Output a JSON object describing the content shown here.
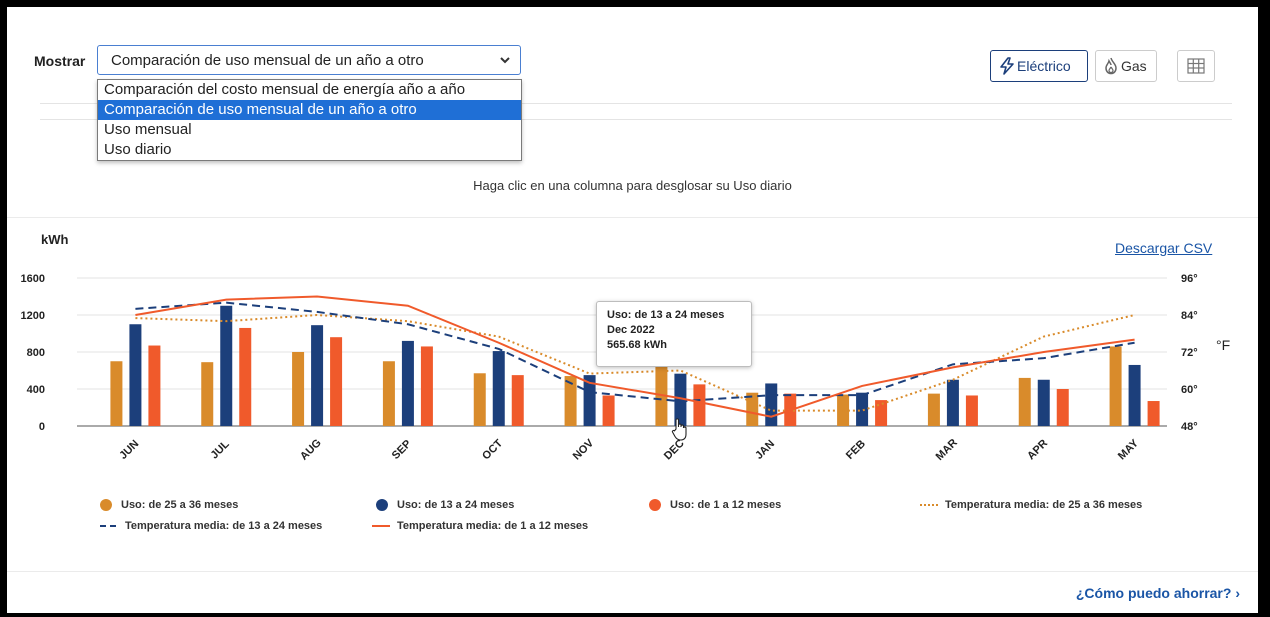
{
  "controls": {
    "mostrar_label": "Mostrar",
    "selected": "Comparación de uso mensual de un año a otro",
    "options": [
      "Comparación del costo mensual de energía año a año",
      "Comparación de uso mensual de un año a otro",
      "Uso mensual",
      "Uso diario"
    ],
    "selected_index": 1,
    "electric_label": "Eléctrico",
    "gas_label": "Gas"
  },
  "hint": "Haga clic en una columna para desglosar su Uso diario",
  "download_csv": "Descargar CSV",
  "chart_data": {
    "type": "bar",
    "ylabel": "kWh",
    "y2label": "°F",
    "ylim": [
      0,
      1600
    ],
    "y_ticks": [
      "1600",
      "1200",
      "800",
      "400",
      "0"
    ],
    "y2lim": [
      48,
      96
    ],
    "y2_ticks": [
      "96°",
      "84°",
      "72°",
      "60°",
      "48°"
    ],
    "categories": [
      "JUN",
      "JUL",
      "AUG",
      "SEP",
      "OCT",
      "NOV",
      "DEC",
      "JAN",
      "FEB",
      "MAR",
      "APR",
      "MAY"
    ],
    "series": [
      {
        "name": "Uso: de 25 a 36 meses",
        "color": "#d98b2b",
        "values": [
          700,
          690,
          800,
          700,
          570,
          540,
          650,
          360,
          340,
          350,
          520,
          860
        ]
      },
      {
        "name": "Uso: de 13 a 24 meses",
        "color": "#1c3f7b",
        "values": [
          1100,
          1300,
          1090,
          920,
          810,
          550,
          565.68,
          460,
          360,
          500,
          500,
          660
        ]
      },
      {
        "name": "Uso: de 1 a 12 meses",
        "color": "#f05a2b",
        "values": [
          870,
          1060,
          960,
          860,
          550,
          330,
          450,
          350,
          280,
          330,
          400,
          270
        ]
      }
    ],
    "lines": [
      {
        "name": "Temperatura media: de 25 a 36 meses",
        "color": "#d98b2b",
        "style": "dotted",
        "values": [
          83,
          82,
          84,
          82,
          77,
          65,
          66,
          53,
          53,
          63,
          77,
          84
        ]
      },
      {
        "name": "Temperatura media: de 13 a 24 meses",
        "color": "#1c3f7b",
        "style": "dashed",
        "values": [
          86,
          88,
          85,
          81,
          73,
          59,
          56,
          58,
          58,
          68,
          70,
          75
        ]
      },
      {
        "name": "Temperatura media: de 1 a 12 meses",
        "color": "#f05a2b",
        "style": "solid",
        "values": [
          84,
          89,
          90,
          87,
          75,
          62,
          57,
          51,
          61,
          67,
          72,
          76
        ]
      }
    ],
    "grid": true,
    "legend_position": "bottom"
  },
  "tooltip": {
    "title": "Uso: de 13 a 24 meses",
    "date": "Dec 2022",
    "value": "565.68 kWh"
  },
  "footer_link": "¿Cómo puedo ahorrar? ›"
}
